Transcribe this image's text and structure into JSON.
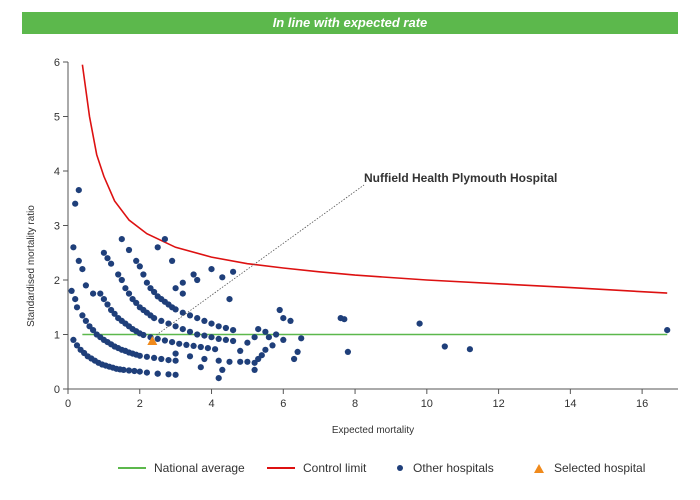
{
  "header": {
    "banner": "In line with expected rate"
  },
  "colors": {
    "banner": "#5cb84c",
    "average": "#5cb84c",
    "limit": "#dd1111",
    "hospitals": "#1f3f7a",
    "selected": "#f08a1c"
  },
  "legend": {
    "average": "National average",
    "limit": "Control limit",
    "others": "Other hospitals",
    "selected": "Selected hospital"
  },
  "chart_data": {
    "type": "scatter",
    "xlabel": "Expected mortality",
    "ylabel": "Standardised mortality ratio",
    "xlim": [
      0,
      17
    ],
    "ylim": [
      0,
      6
    ],
    "xticks": [
      0,
      2,
      4,
      6,
      8,
      10,
      12,
      14,
      16
    ],
    "yticks": [
      0,
      1,
      2,
      3,
      4,
      5,
      6
    ],
    "grid": false,
    "legend_position": "bottom",
    "national_average": 1,
    "control_limit": [
      [
        0.4,
        5.95
      ],
      [
        0.6,
        5.0
      ],
      [
        0.8,
        4.3
      ],
      [
        1.0,
        3.9
      ],
      [
        1.3,
        3.45
      ],
      [
        1.7,
        3.1
      ],
      [
        2.2,
        2.85
      ],
      [
        3.0,
        2.6
      ],
      [
        4.0,
        2.42
      ],
      [
        5.0,
        2.3
      ],
      [
        6.0,
        2.22
      ],
      [
        7.0,
        2.15
      ],
      [
        8.0,
        2.09
      ],
      [
        10.0,
        2.0
      ],
      [
        12.0,
        1.93
      ],
      [
        14.0,
        1.86
      ],
      [
        16.7,
        1.76
      ]
    ],
    "annotation": {
      "text": "Nuffield Health Plymouth Hospital",
      "x": 2.35,
      "y": 0.88
    },
    "selected_hospital": {
      "x": 2.35,
      "y": 0.88
    },
    "other_hospitals": [
      [
        0.1,
        1.8
      ],
      [
        0.15,
        2.6
      ],
      [
        0.2,
        3.4
      ],
      [
        0.3,
        3.65
      ],
      [
        0.2,
        1.65
      ],
      [
        0.3,
        2.35
      ],
      [
        0.4,
        2.2
      ],
      [
        0.25,
        1.5
      ],
      [
        0.5,
        1.9
      ],
      [
        0.7,
        1.75
      ],
      [
        0.15,
        0.9
      ],
      [
        0.25,
        0.8
      ],
      [
        0.35,
        0.72
      ],
      [
        0.45,
        0.66
      ],
      [
        0.55,
        0.6
      ],
      [
        0.65,
        0.56
      ],
      [
        0.75,
        0.52
      ],
      [
        0.85,
        0.48
      ],
      [
        0.95,
        0.45
      ],
      [
        1.05,
        0.43
      ],
      [
        1.15,
        0.41
      ],
      [
        1.25,
        0.39
      ],
      [
        1.35,
        0.37
      ],
      [
        1.45,
        0.36
      ],
      [
        1.55,
        0.35
      ],
      [
        1.7,
        0.34
      ],
      [
        1.85,
        0.33
      ],
      [
        2.0,
        0.32
      ],
      [
        2.2,
        0.3
      ],
      [
        2.5,
        0.28
      ],
      [
        2.8,
        0.27
      ],
      [
        3.0,
        0.26
      ],
      [
        0.4,
        1.35
      ],
      [
        0.5,
        1.25
      ],
      [
        0.6,
        1.15
      ],
      [
        0.7,
        1.08
      ],
      [
        0.8,
        1.0
      ],
      [
        0.9,
        0.95
      ],
      [
        1.0,
        0.9
      ],
      [
        1.1,
        0.86
      ],
      [
        1.2,
        0.82
      ],
      [
        1.3,
        0.78
      ],
      [
        1.4,
        0.75
      ],
      [
        1.5,
        0.72
      ],
      [
        1.6,
        0.7
      ],
      [
        1.7,
        0.67
      ],
      [
        1.8,
        0.65
      ],
      [
        1.9,
        0.63
      ],
      [
        2.0,
        0.61
      ],
      [
        2.2,
        0.59
      ],
      [
        2.4,
        0.57
      ],
      [
        2.6,
        0.55
      ],
      [
        2.8,
        0.53
      ],
      [
        3.0,
        0.52
      ],
      [
        0.9,
        1.75
      ],
      [
        1.0,
        1.65
      ],
      [
        1.1,
        1.55
      ],
      [
        1.2,
        1.45
      ],
      [
        1.3,
        1.38
      ],
      [
        1.4,
        1.3
      ],
      [
        1.5,
        1.25
      ],
      [
        1.6,
        1.2
      ],
      [
        1.7,
        1.15
      ],
      [
        1.8,
        1.1
      ],
      [
        1.9,
        1.06
      ],
      [
        2.0,
        1.02
      ],
      [
        2.1,
        0.99
      ],
      [
        2.3,
        0.95
      ],
      [
        2.5,
        0.92
      ],
      [
        2.7,
        0.89
      ],
      [
        2.9,
        0.86
      ],
      [
        3.1,
        0.83
      ],
      [
        3.3,
        0.81
      ],
      [
        3.5,
        0.79
      ],
      [
        3.7,
        0.77
      ],
      [
        3.9,
        0.75
      ],
      [
        4.1,
        0.73
      ],
      [
        1.0,
        2.5
      ],
      [
        1.1,
        2.4
      ],
      [
        1.2,
        2.3
      ],
      [
        1.4,
        2.1
      ],
      [
        1.5,
        2.0
      ],
      [
        1.6,
        1.85
      ],
      [
        1.7,
        1.75
      ],
      [
        1.8,
        1.65
      ],
      [
        1.9,
        1.58
      ],
      [
        2.0,
        1.5
      ],
      [
        2.1,
        1.45
      ],
      [
        2.2,
        1.4
      ],
      [
        2.3,
        1.35
      ],
      [
        2.4,
        1.3
      ],
      [
        2.6,
        1.25
      ],
      [
        2.8,
        1.2
      ],
      [
        3.0,
        1.15
      ],
      [
        3.2,
        1.1
      ],
      [
        3.4,
        1.05
      ],
      [
        3.6,
        1.0
      ],
      [
        3.8,
        0.98
      ],
      [
        4.0,
        0.95
      ],
      [
        4.2,
        0.92
      ],
      [
        4.4,
        0.9
      ],
      [
        4.6,
        0.88
      ],
      [
        1.5,
        2.75
      ],
      [
        1.7,
        2.55
      ],
      [
        1.9,
        2.35
      ],
      [
        2.0,
        2.25
      ],
      [
        2.1,
        2.1
      ],
      [
        2.2,
        1.95
      ],
      [
        2.3,
        1.85
      ],
      [
        2.4,
        1.78
      ],
      [
        2.5,
        1.7
      ],
      [
        2.6,
        1.65
      ],
      [
        2.7,
        1.6
      ],
      [
        2.8,
        1.55
      ],
      [
        2.9,
        1.5
      ],
      [
        3.0,
        1.46
      ],
      [
        3.2,
        1.4
      ],
      [
        3.4,
        1.35
      ],
      [
        3.6,
        1.3
      ],
      [
        3.8,
        1.25
      ],
      [
        4.0,
        1.2
      ],
      [
        4.2,
        1.15
      ],
      [
        4.4,
        1.12
      ],
      [
        4.6,
        1.08
      ],
      [
        2.5,
        2.6
      ],
      [
        2.7,
        2.75
      ],
      [
        2.9,
        2.35
      ],
      [
        3.0,
        1.85
      ],
      [
        3.2,
        1.95
      ],
      [
        3.5,
        2.1
      ],
      [
        3.6,
        2.0
      ],
      [
        4.0,
        2.2
      ],
      [
        4.3,
        2.05
      ],
      [
        4.6,
        2.15
      ],
      [
        4.5,
        1.65
      ],
      [
        3.2,
        1.75
      ],
      [
        2.5,
        0.28
      ],
      [
        3.0,
        0.65
      ],
      [
        3.4,
        0.6
      ],
      [
        3.8,
        0.55
      ],
      [
        4.2,
        0.52
      ],
      [
        4.5,
        0.5
      ],
      [
        3.7,
        0.4
      ],
      [
        4.3,
        0.35
      ],
      [
        4.2,
        0.2
      ],
      [
        4.8,
        0.5
      ],
      [
        5.0,
        0.5
      ],
      [
        5.2,
        0.48
      ],
      [
        5.3,
        0.55
      ],
      [
        4.8,
        0.7
      ],
      [
        5.0,
        0.85
      ],
      [
        5.2,
        0.95
      ],
      [
        5.4,
        0.62
      ],
      [
        5.5,
        0.72
      ],
      [
        5.7,
        0.8
      ],
      [
        5.3,
        1.1
      ],
      [
        5.5,
        1.05
      ],
      [
        5.8,
        1.0
      ],
      [
        6.0,
        0.9
      ],
      [
        5.6,
        0.95
      ],
      [
        5.9,
        1.45
      ],
      [
        6.0,
        1.3
      ],
      [
        6.2,
        1.25
      ],
      [
        6.3,
        0.55
      ],
      [
        6.4,
        0.68
      ],
      [
        6.5,
        0.93
      ],
      [
        5.2,
        0.35
      ],
      [
        7.6,
        1.3
      ],
      [
        7.7,
        1.28
      ],
      [
        7.8,
        0.68
      ],
      [
        9.8,
        1.2
      ],
      [
        10.5,
        0.78
      ],
      [
        11.2,
        0.73
      ],
      [
        16.7,
        1.08
      ]
    ]
  }
}
